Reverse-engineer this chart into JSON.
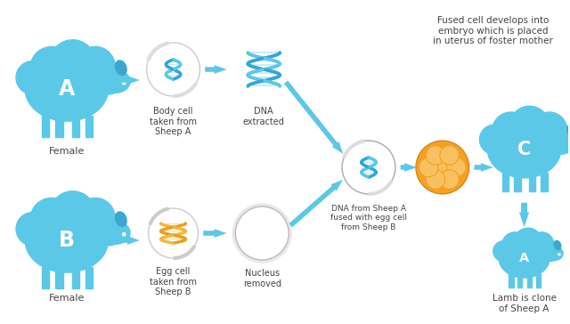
{
  "bg_color": "#ffffff",
  "sheep_blue": "#5BC8E8",
  "sheep_blue_light": "#7DD8EE",
  "sheep_dark_head": "#3AA8CC",
  "dna_blue1": "#2FA8D8",
  "dna_blue2": "#5BC8E8",
  "dna_blue_light": "#B8E8F8",
  "dna_orange1": "#E8A020",
  "dna_orange2": "#F0B840",
  "dna_orange_light": "#FFD880",
  "arrow_color": "#5BC8E8",
  "arrow_dark": "#3AAACE",
  "embryo_orange": "#F5A020",
  "embryo_light": "#F8C060",
  "text_color": "#444444",
  "cell_bg": "#F0F0F0",
  "cell_border": "#CCCCCC",
  "labels": {
    "female_A": "Female",
    "body_cell": "Body cell\ntaken from\nSheep A",
    "dna_extracted": "DNA\nextracted",
    "fused_label": "DNA from Sheep A\nfused with egg cell\nfrom Sheep B",
    "foster": "Fused cell develops into\nembryo which is placed\nin uterus of foster mother",
    "female_B": "Female",
    "egg_cell": "Egg cell\ntaken from\nSheep B",
    "nucleus": "Nucleus\nremoved",
    "lamb": "Lamb is clone\nof Sheep A"
  }
}
